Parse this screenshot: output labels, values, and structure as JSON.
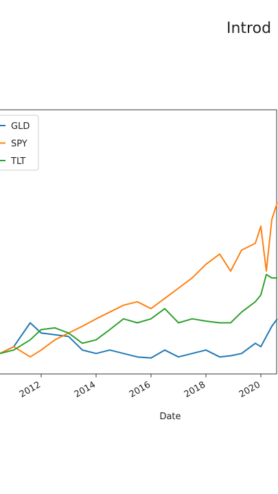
{
  "chart_data": {
    "type": "line",
    "title": "Introd",
    "x_label": "Date",
    "x": [
      2010.5,
      2011,
      2011.6,
      2012,
      2012.5,
      2013,
      2013.5,
      2014,
      2014.5,
      2015,
      2015.5,
      2016,
      2016.5,
      2017,
      2017.5,
      2018,
      2018.5,
      2018.9,
      2019.3,
      2019.8,
      2020,
      2020.2,
      2020.4,
      2020.6
    ],
    "series": [
      {
        "name": "GLD",
        "color": "#1f77b4",
        "values": [
          1,
          1.12,
          1.54,
          1.36,
          1.33,
          1.3,
          1.06,
          1,
          1.06,
          1,
          0.94,
          0.92,
          1.06,
          0.94,
          1,
          1.06,
          0.94,
          0.96,
          1,
          1.18,
          1.12,
          1.3,
          1.48,
          1.61
        ]
      },
      {
        "name": "SPY",
        "color": "#ff7f0e",
        "values": [
          1,
          1.12,
          0.94,
          1.06,
          1.24,
          1.36,
          1.48,
          1.61,
          1.73,
          1.85,
          1.91,
          1.79,
          1.97,
          2.15,
          2.33,
          2.57,
          2.75,
          2.45,
          2.82,
          2.94,
          3.24,
          2.45,
          3.36,
          3.66
        ]
      },
      {
        "name": "TLT",
        "color": "#2ca02c",
        "values": [
          1,
          1.06,
          1.24,
          1.42,
          1.45,
          1.36,
          1.18,
          1.24,
          1.42,
          1.61,
          1.54,
          1.61,
          1.79,
          1.54,
          1.61,
          1.57,
          1.54,
          1.54,
          1.73,
          1.91,
          2.03,
          2.39,
          2.33,
          2.33
        ]
      }
    ],
    "xlim": [
      2010.5,
      2020.625
    ],
    "xticks": [
      2012,
      2014,
      2016,
      2018,
      2020
    ],
    "ylim": [
      0.64,
      5.29
    ],
    "legend": "upper left"
  }
}
